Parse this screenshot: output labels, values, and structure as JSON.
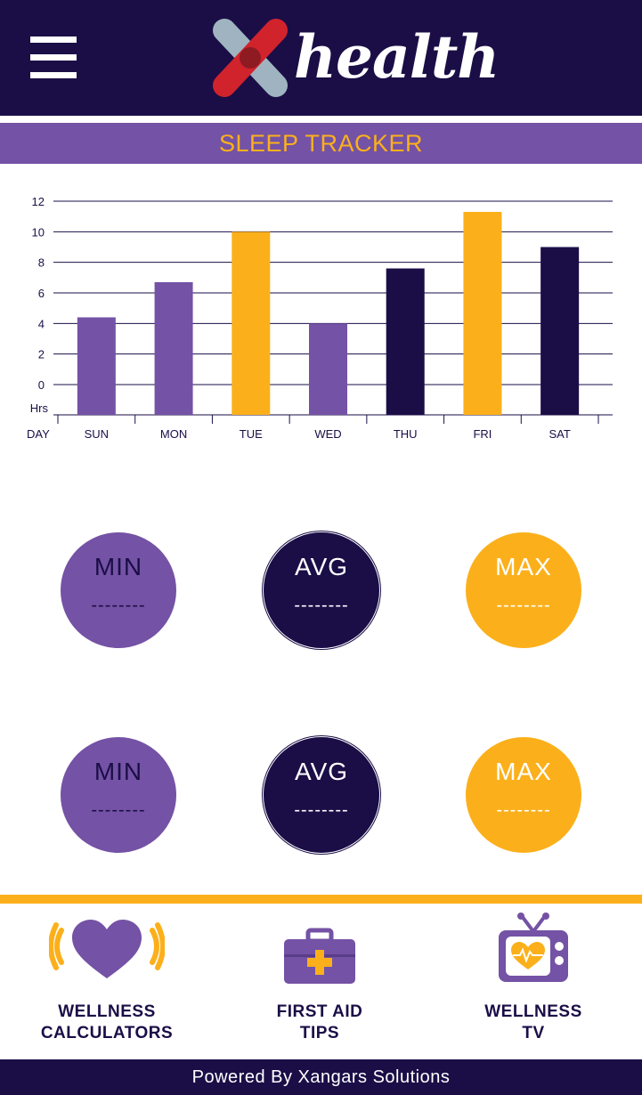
{
  "header": {
    "logo_text": "health",
    "menu_icon": "hamburger-icon",
    "logo_icon": "x-cross-logo-icon"
  },
  "title": "SLEEP TRACKER",
  "chart_data": {
    "type": "bar",
    "categories": [
      "SUN",
      "MON",
      "TUE",
      "WED",
      "THU",
      "FRI",
      "SAT"
    ],
    "values": [
      4.4,
      6.7,
      10,
      4,
      7.6,
      11.3,
      9
    ],
    "bar_colors": [
      "#7452a5",
      "#7452a5",
      "#fbb01b",
      "#7452a5",
      "#1b0e47",
      "#fbb01b",
      "#1b0e47"
    ],
    "xlabel": "DAY",
    "ylabel": "Hrs",
    "yticks": [
      0,
      2,
      4,
      6,
      8,
      10,
      12
    ],
    "ylim": [
      0,
      12
    ],
    "grid": true
  },
  "stats": [
    [
      {
        "label": "MIN",
        "value": "--------",
        "kind": "min"
      },
      {
        "label": "AVG",
        "value": "--------",
        "kind": "avg"
      },
      {
        "label": "MAX",
        "value": "--------",
        "kind": "max"
      }
    ],
    [
      {
        "label": "MIN",
        "value": "--------",
        "kind": "min"
      },
      {
        "label": "AVG",
        "value": "--------",
        "kind": "avg"
      },
      {
        "label": "MAX",
        "value": "--------",
        "kind": "max"
      }
    ]
  ],
  "nav": [
    {
      "line1": "WELLNESS",
      "line2": "CALCULATORS",
      "icon": "heart-pulse-icon"
    },
    {
      "line1": "FIRST AID",
      "line2": "TIPS",
      "icon": "first-aid-kit-icon"
    },
    {
      "line1": "WELLNESS",
      "line2": "TV",
      "icon": "tv-heart-icon"
    }
  ],
  "footer": "Powered By Xangars Solutions",
  "colors": {
    "navy": "#1b0e47",
    "purple": "#7452a5",
    "orange": "#fbb01b"
  }
}
